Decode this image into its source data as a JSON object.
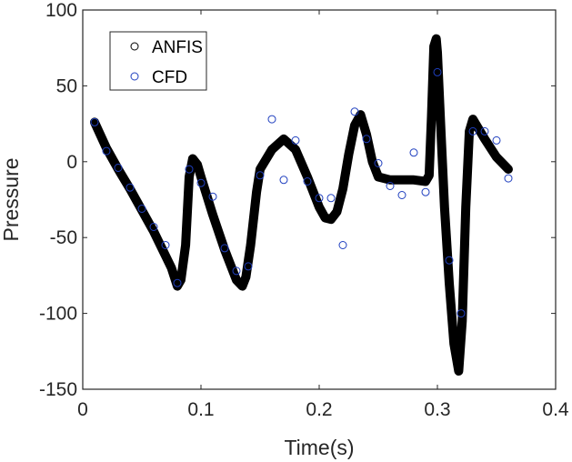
{
  "chart_data": {
    "type": "line",
    "title": "",
    "xlabel": "Time(s)",
    "ylabel": "Pressure",
    "xlim": [
      0,
      0.4
    ],
    "ylim": [
      -150,
      100
    ],
    "xticks": [
      0,
      0.1,
      0.2,
      0.3,
      0.4
    ],
    "xtick_labels": [
      "0",
      "0.1",
      "0.2",
      "0.3",
      "0.4"
    ],
    "yticks": [
      100,
      50,
      0,
      -50,
      -100,
      -150
    ],
    "ytick_labels": [
      "100",
      "50",
      "0",
      "-50",
      "-100",
      "-150"
    ],
    "grid": false,
    "legend_position": "top-left",
    "series": [
      {
        "name": "ANFIS",
        "style": "line",
        "color": "#000000",
        "x": [
          0.01,
          0.02,
          0.03,
          0.04,
          0.05,
          0.06,
          0.07,
          0.075,
          0.08,
          0.083,
          0.087,
          0.09,
          0.093,
          0.097,
          0.1,
          0.11,
          0.12,
          0.13,
          0.135,
          0.138,
          0.142,
          0.147,
          0.15,
          0.16,
          0.17,
          0.18,
          0.19,
          0.2,
          0.205,
          0.21,
          0.215,
          0.22,
          0.225,
          0.23,
          0.235,
          0.24,
          0.245,
          0.25,
          0.26,
          0.27,
          0.28,
          0.29,
          0.293,
          0.295,
          0.297,
          0.299,
          0.3,
          0.303,
          0.306,
          0.31,
          0.314,
          0.318,
          0.321,
          0.324,
          0.327,
          0.33,
          0.34,
          0.35,
          0.36
        ],
        "y": [
          26,
          9,
          -5,
          -18,
          -32,
          -46,
          -62,
          -70,
          -82,
          -78,
          -55,
          -10,
          2,
          -2,
          -10,
          -35,
          -58,
          -78,
          -82,
          -76,
          -55,
          -20,
          -5,
          8,
          15,
          8,
          -10,
          -30,
          -37,
          -38,
          -33,
          -18,
          5,
          24,
          31,
          18,
          0,
          -10,
          -12,
          -12,
          -12,
          -13,
          -9,
          30,
          76,
          81,
          72,
          20,
          -30,
          -80,
          -120,
          -138,
          -105,
          -30,
          20,
          28,
          15,
          3,
          -5
        ]
      },
      {
        "name": "CFD",
        "style": "marker",
        "color": "#1f3fbf",
        "x": [
          0.01,
          0.02,
          0.03,
          0.04,
          0.05,
          0.06,
          0.07,
          0.08,
          0.09,
          0.1,
          0.11,
          0.12,
          0.13,
          0.14,
          0.15,
          0.16,
          0.17,
          0.18,
          0.19,
          0.2,
          0.21,
          0.22,
          0.23,
          0.24,
          0.25,
          0.26,
          0.27,
          0.28,
          0.29,
          0.3,
          0.31,
          0.32,
          0.33,
          0.34,
          0.35,
          0.36
        ],
        "y": [
          26,
          7,
          -4,
          -17,
          -31,
          -43,
          -55,
          -80,
          -5,
          -14,
          -23,
          -57,
          -72,
          -69,
          -9,
          28,
          -12,
          14,
          -13,
          -24,
          -24,
          -55,
          33,
          15,
          -1,
          -16,
          -22,
          6,
          -20,
          59,
          -65,
          -100,
          20,
          20,
          14,
          -11
        ]
      }
    ]
  }
}
